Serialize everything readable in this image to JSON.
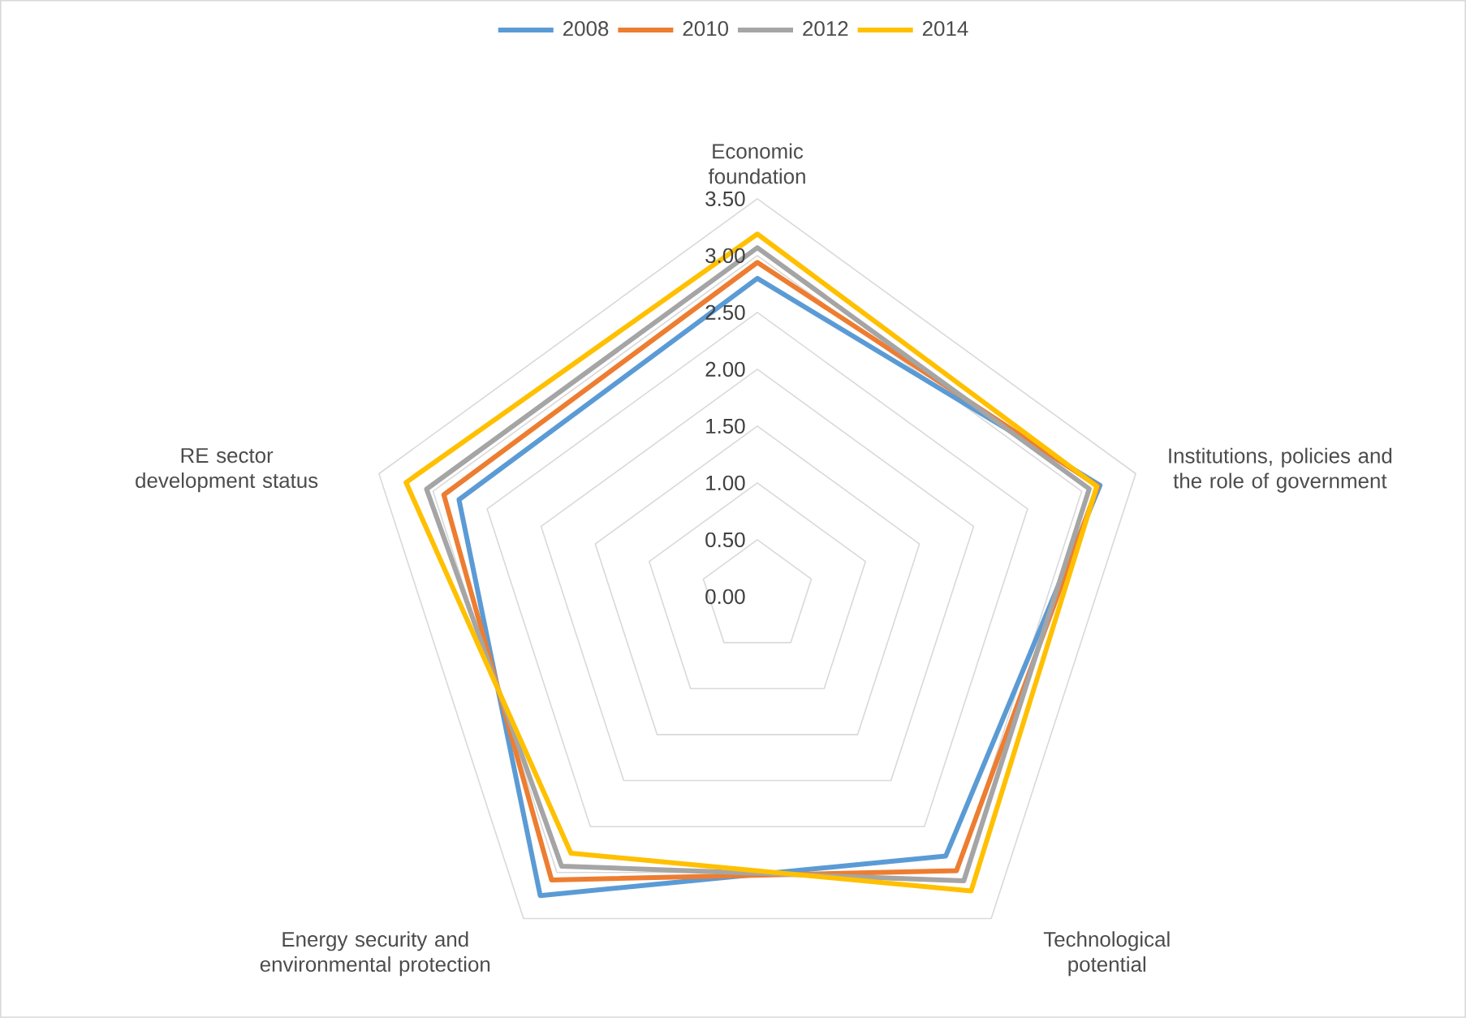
{
  "chart_data": {
    "type": "radar",
    "categories": [
      "Economic foundation",
      "Institutions, policies and the role of government",
      "Technological potential",
      "Energy security and environmental protection",
      "RE sector development status"
    ],
    "series": [
      {
        "name": "2008",
        "color": "#5b9bd5",
        "values": [
          2.8,
          3.17,
          2.82,
          3.25,
          2.76
        ]
      },
      {
        "name": "2010",
        "color": "#ed7d31",
        "values": [
          2.94,
          3.15,
          2.98,
          3.08,
          2.9
        ]
      },
      {
        "name": "2012",
        "color": "#a5a5a5",
        "values": [
          3.07,
          3.07,
          3.09,
          2.93,
          3.06
        ]
      },
      {
        "name": "2014",
        "color": "#ffc000",
        "values": [
          3.19,
          3.14,
          3.2,
          2.79,
          3.25
        ]
      }
    ],
    "ylim": [
      0,
      3.5
    ],
    "yticks": [
      {
        "value": 0,
        "label": "0.00"
      },
      {
        "value": 0.5,
        "label": "0.50"
      },
      {
        "value": 1,
        "label": "1.00"
      },
      {
        "value": 1.5,
        "label": "1.50"
      },
      {
        "value": 2,
        "label": "2.00"
      },
      {
        "value": 2.5,
        "label": "2.50"
      },
      {
        "value": 3,
        "label": "3.00"
      },
      {
        "value": 3.5,
        "label": "3.50"
      }
    ],
    "grid": true,
    "legend": "top"
  }
}
